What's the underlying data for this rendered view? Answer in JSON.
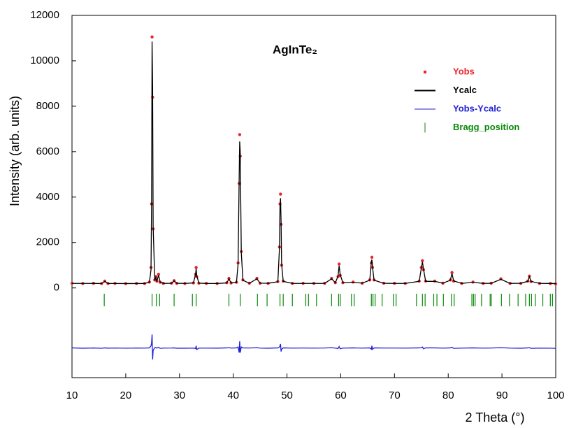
{
  "chart_data": {
    "type": "line",
    "title": "AgInTe₂",
    "xlabel": "2 Theta (°)",
    "ylabel": "Intensity (arb. units)",
    "xlim": [
      10,
      100
    ],
    "ylim": [
      -3950,
      12000
    ],
    "xticks": [
      10,
      20,
      30,
      40,
      50,
      60,
      70,
      80,
      90,
      100
    ],
    "yticks": [
      0,
      2000,
      4000,
      6000,
      8000,
      10000,
      12000
    ],
    "x": [
      10,
      12,
      14,
      15.5,
      16.1,
      16.7,
      18,
      20,
      22,
      23.5,
      24.4,
      24.7,
      24.8,
      24.9,
      25.0,
      25.1,
      25.4,
      25.6,
      25.8,
      26.1,
      26.4,
      27,
      28.5,
      29.0,
      29.5,
      31,
      32.6,
      33.0,
      33.1,
      33.2,
      33.6,
      35,
      37,
      38.8,
      39.2,
      39.6,
      40.6,
      40.9,
      41.1,
      41.2,
      41.3,
      41.5,
      41.8,
      43,
      44.4,
      45,
      46.5,
      48.3,
      48.6,
      48.7,
      48.8,
      48.9,
      49.0,
      49.3,
      51,
      53,
      55,
      57,
      58.3,
      59,
      59.5,
      59.7,
      59.9,
      60.4,
      62.3,
      64,
      65.4,
      65.7,
      65.8,
      65.9,
      66.2,
      68,
      70,
      72,
      74.6,
      75.0,
      75.2,
      75.4,
      75.8,
      77.5,
      79,
      80.4,
      80.7,
      81.0,
      82.5,
      84.6,
      86.5,
      88,
      89.8,
      91.5,
      93.5,
      94.8,
      95.1,
      95.4,
      97,
      99,
      100
    ],
    "series": [
      {
        "name": "Yobs",
        "color": "#e8262a",
        "style": "points",
        "values": [
          210,
          195,
          205,
          190,
          300,
          195,
          200,
          190,
          198,
          195,
          260,
          900,
          3700,
          11050,
          8400,
          2600,
          350,
          500,
          300,
          600,
          250,
          200,
          210,
          320,
          200,
          195,
          220,
          600,
          900,
          500,
          210,
          200,
          195,
          230,
          420,
          220,
          250,
          1100,
          4600,
          6750,
          5800,
          1600,
          350,
          210,
          420,
          210,
          200,
          280,
          1800,
          3700,
          4130,
          2800,
          1000,
          300,
          200,
          205,
          200,
          205,
          420,
          230,
          500,
          1050,
          550,
          230,
          260,
          210,
          350,
          1100,
          1350,
          900,
          350,
          210,
          205,
          200,
          300,
          900,
          1200,
          800,
          300,
          300,
          210,
          350,
          680,
          300,
          200,
          260,
          200,
          210,
          400,
          200,
          200,
          300,
          520,
          280,
          200,
          195,
          180
        ]
      },
      {
        "name": "Ycalc",
        "color": "#000000",
        "style": "line",
        "values": [
          200,
          200,
          198,
          196,
          290,
          196,
          195,
          194,
          193,
          195,
          250,
          800,
          3500,
          10850,
          8900,
          2700,
          330,
          470,
          300,
          560,
          260,
          200,
          205,
          310,
          205,
          200,
          220,
          620,
          850,
          560,
          210,
          198,
          196,
          220,
          400,
          220,
          240,
          1050,
          4800,
          6450,
          6000,
          1550,
          340,
          205,
          400,
          210,
          205,
          270,
          1750,
          3600,
          3950,
          2950,
          1050,
          290,
          200,
          200,
          200,
          200,
          400,
          230,
          520,
          980,
          580,
          230,
          250,
          210,
          340,
          1150,
          1250,
          950,
          340,
          205,
          200,
          200,
          290,
          880,
          1150,
          830,
          290,
          290,
          210,
          340,
          640,
          310,
          200,
          250,
          200,
          205,
          380,
          200,
          205,
          290,
          500,
          290,
          200,
          198,
          190
        ]
      },
      {
        "name": "Yobs-Ycalc",
        "color": "#1f1fd0",
        "style": "line",
        "values": [
          -2640,
          -2655,
          -2643,
          -2656,
          -2640,
          -2651,
          -2645,
          -2654,
          -2645,
          -2650,
          -2640,
          -2550,
          -2450,
          -2050,
          -3150,
          -2750,
          -2630,
          -2620,
          -2650,
          -2610,
          -2660,
          -2650,
          -2645,
          -2640,
          -2655,
          -2655,
          -2650,
          -2670,
          -2550,
          -2710,
          -2650,
          -2648,
          -2651,
          -2640,
          -2630,
          -2650,
          -2640,
          -2600,
          -2850,
          -2350,
          -2850,
          -2600,
          -2640,
          -2645,
          -2630,
          -2650,
          -2655,
          -2640,
          -2600,
          -2550,
          -2470,
          -2800,
          -2700,
          -2640,
          -2650,
          -2645,
          -2650,
          -2645,
          -2630,
          -2650,
          -2670,
          -2580,
          -2680,
          -2650,
          -2640,
          -2650,
          -2640,
          -2700,
          -2550,
          -2700,
          -2640,
          -2645,
          -2645,
          -2650,
          -2640,
          -2630,
          -2600,
          -2680,
          -2640,
          -2640,
          -2650,
          -2640,
          -2610,
          -2660,
          -2650,
          -2640,
          -2650,
          -2645,
          -2630,
          -2650,
          -2655,
          -2640,
          -2630,
          -2660,
          -2650,
          -2653,
          -2660
        ]
      }
    ],
    "bragg": {
      "name": "Bragg_position",
      "color": "#0a8a0a",
      "positions": [
        16.0,
        24.9,
        25.7,
        26.3,
        29.0,
        32.4,
        33.1,
        39.2,
        41.3,
        44.5,
        46.3,
        48.7,
        49.3,
        51.0,
        53.5,
        54.0,
        55.5,
        58.3,
        59.6,
        59.9,
        62.0,
        62.5,
        65.7,
        66.0,
        66.4,
        67.7,
        69.8,
        70.3,
        74.1,
        75.2,
        75.7,
        77.3,
        77.9,
        79.1,
        80.6,
        81.1,
        84.4,
        84.7,
        85.0,
        86.2,
        87.8,
        88.0,
        89.9,
        91.4,
        93.0,
        94.4,
        95.1,
        95.5,
        96.2,
        97.6,
        99.0,
        99.4
      ]
    }
  }
}
